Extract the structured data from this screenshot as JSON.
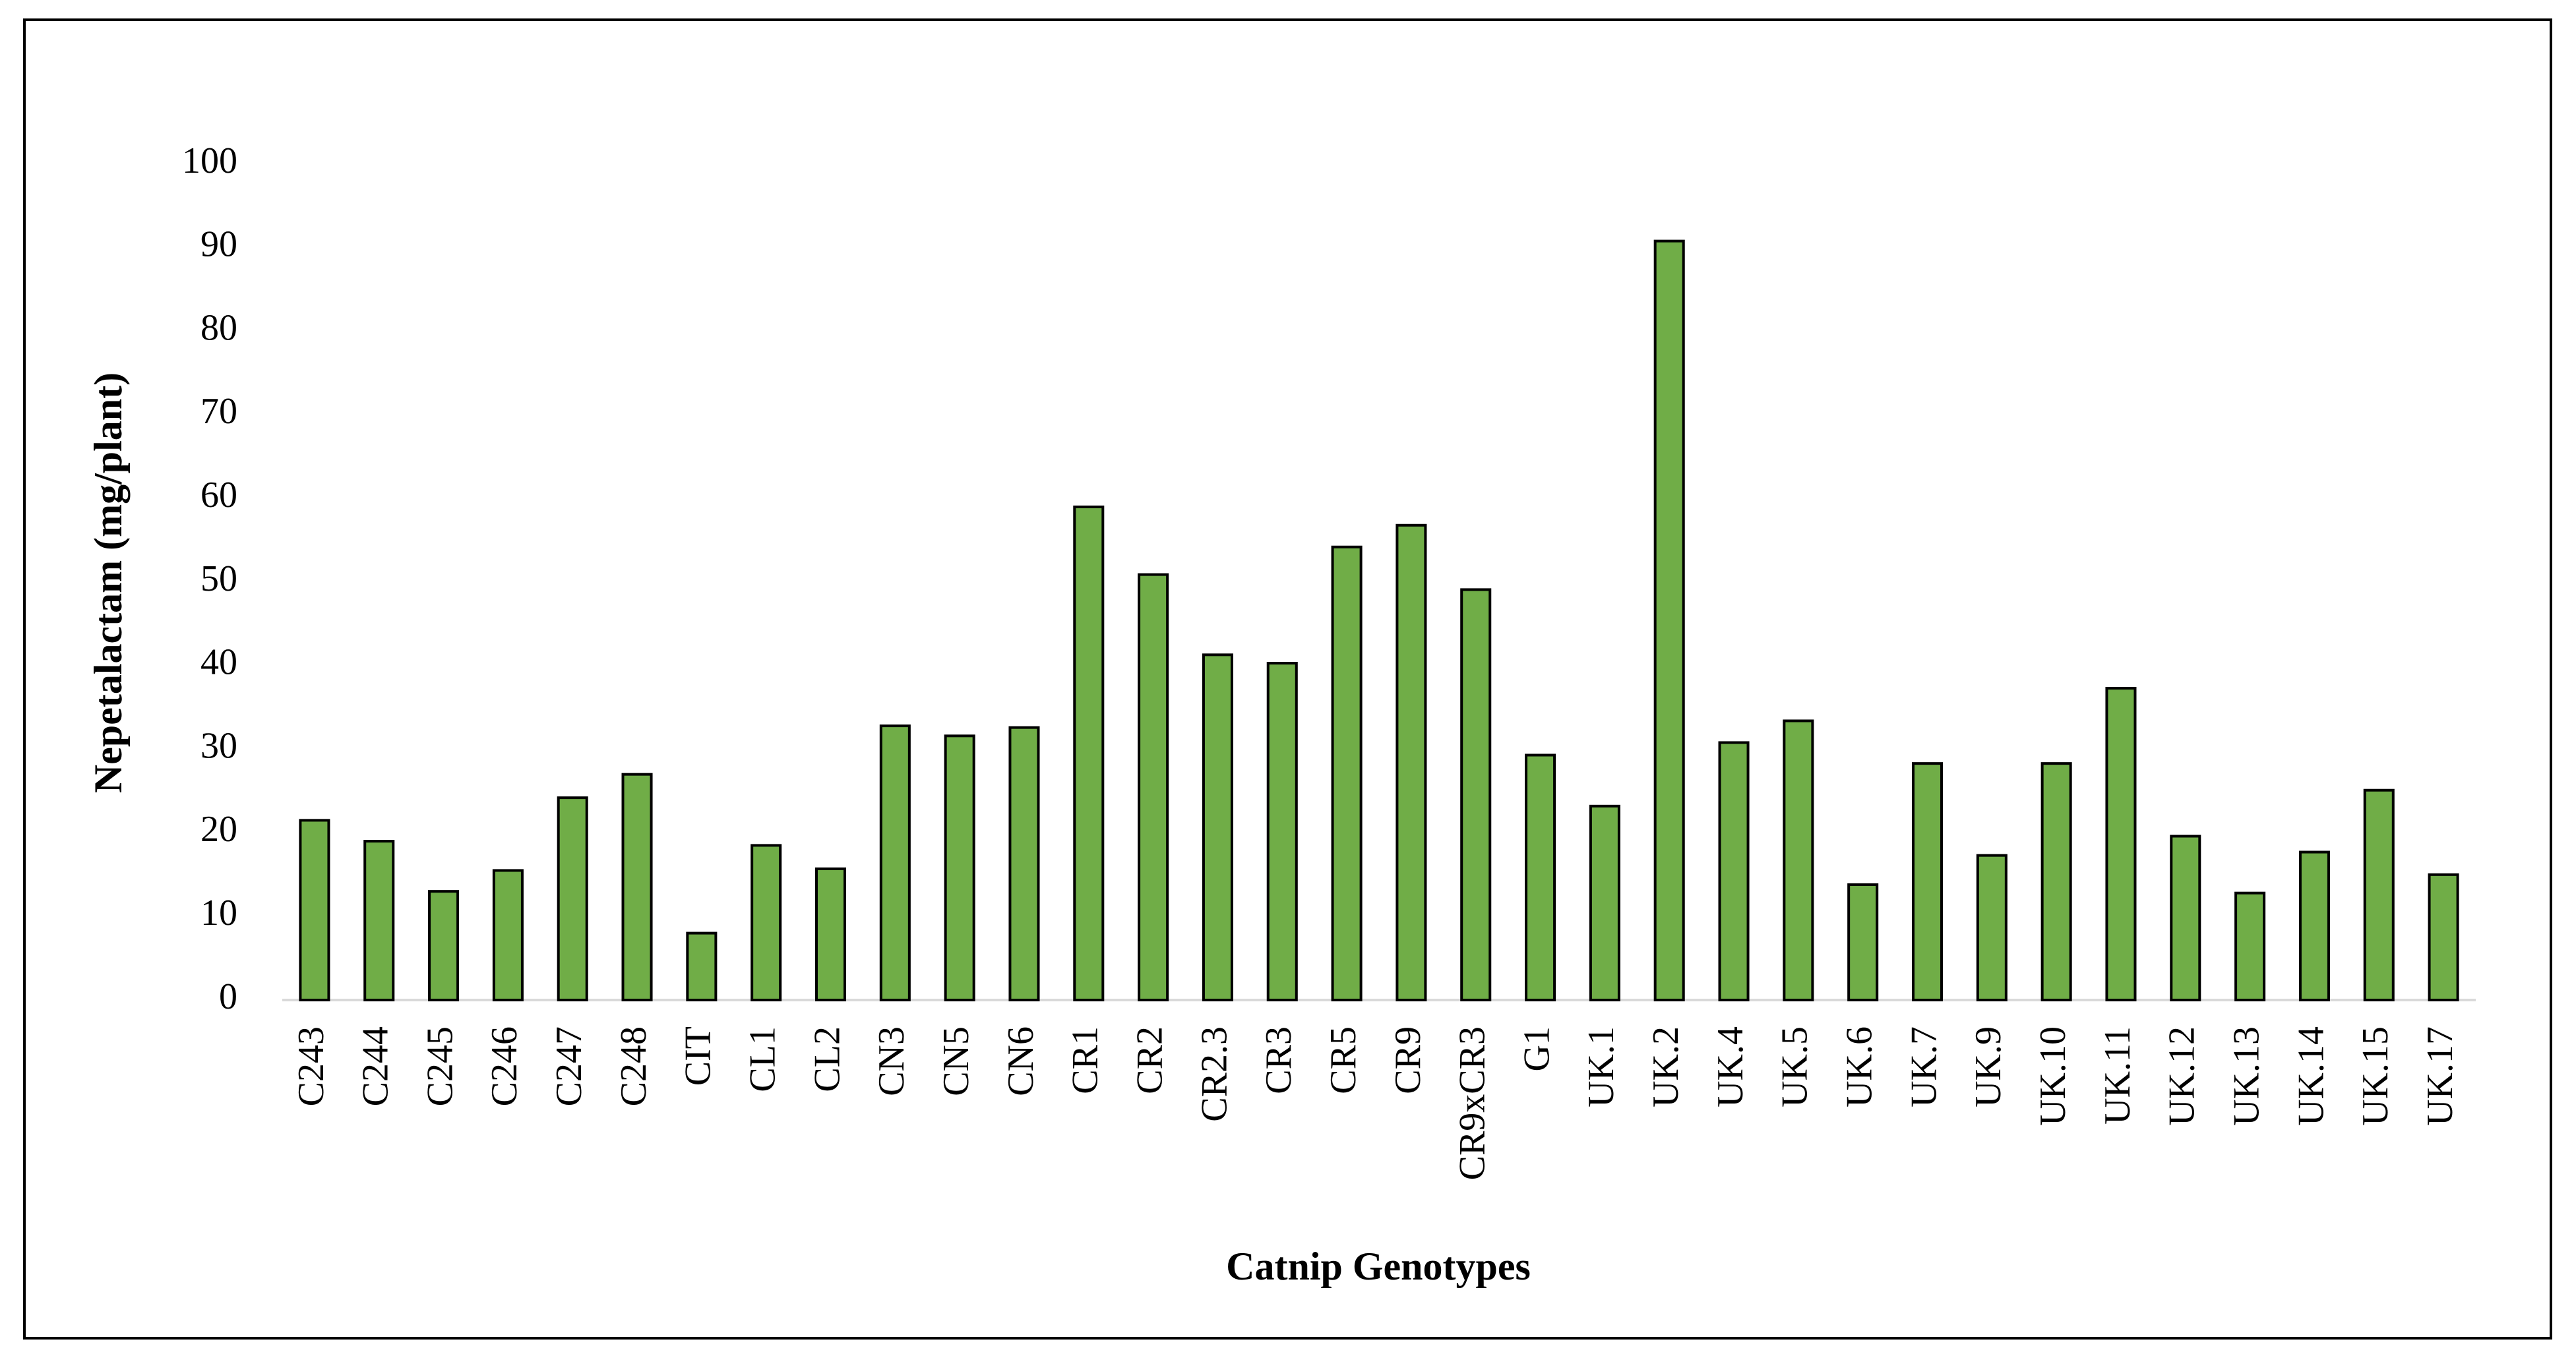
{
  "chart_data": {
    "type": "bar",
    "x_label": "Catnip Genotypes",
    "y_label": "Nepetalactam (mg/plant)",
    "categories": [
      "C243",
      "C244",
      "C245",
      "C246",
      "C247",
      "C248",
      "CIT",
      "CL1",
      "CL2",
      "CN3",
      "CN5",
      "CN6",
      "CR1",
      "CR2",
      "CR2.3",
      "CR3",
      "CR5",
      "CR9",
      "CR9xCR3",
      "G1",
      "UK.1",
      "UK.2",
      "UK.4",
      "UK.5",
      "UK.6",
      "UK.7",
      "UK.9",
      "UK.10",
      "UK.11",
      "UK.12",
      "UK.13",
      "UK.14",
      "UK.15",
      "UK.17"
    ],
    "values": [
      21.5,
      19,
      13,
      15.5,
      24.2,
      27,
      8,
      18.5,
      15.7,
      32.8,
      31.6,
      32.6,
      59,
      50.9,
      41.3,
      40.3,
      54.2,
      56.8,
      49.1,
      29.3,
      23.2,
      90.8,
      30.8,
      33.4,
      13.8,
      28.3,
      17.3,
      28.3,
      37.3,
      19.6,
      12.8,
      17.7,
      25.1,
      15
    ],
    "color": "#70ad47",
    "ylim": [
      0,
      100
    ],
    "yticks": [
      0,
      10,
      20,
      30,
      40,
      50,
      60,
      70,
      80,
      90,
      100
    ],
    "grid": false
  }
}
